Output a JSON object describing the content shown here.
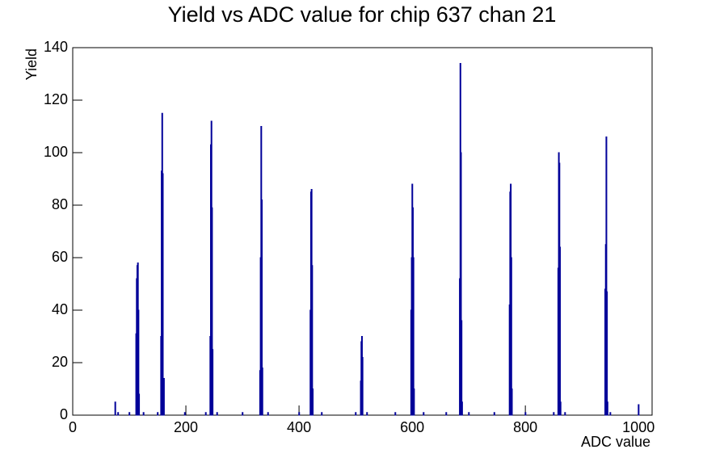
{
  "chart_data": {
    "type": "histogram",
    "title": "Yield vs ADC value for chip 637 chan 21",
    "x_label": "ADC value",
    "y_label": "Yield",
    "color": "#000099",
    "xlim": [
      0,
      1024
    ],
    "ylim": [
      0,
      140
    ],
    "xticks": [
      0,
      200,
      400,
      600,
      800,
      1000
    ],
    "yticks": [
      0,
      20,
      40,
      60,
      80,
      100,
      120,
      140
    ],
    "x": [
      75,
      80,
      100,
      112,
      113,
      114,
      115,
      116,
      117,
      125,
      150,
      156,
      157,
      158,
      159,
      160,
      161,
      198,
      235,
      243,
      244,
      245,
      246,
      247,
      255,
      300,
      331,
      332,
      333,
      334,
      335,
      345,
      400,
      420,
      421,
      422,
      423,
      424,
      440,
      500,
      509,
      510,
      511,
      512,
      520,
      570,
      598,
      599,
      600,
      601,
      602,
      603,
      620,
      660,
      684,
      685,
      686,
      687,
      688,
      700,
      745,
      772,
      773,
      774,
      775,
      776,
      800,
      850,
      858,
      859,
      860,
      861,
      862,
      870,
      941,
      942,
      943,
      944,
      945,
      950,
      1000
    ],
    "values": [
      5,
      1,
      1,
      31,
      52,
      57,
      58,
      40,
      8,
      1,
      1,
      30,
      93,
      115,
      92,
      14,
      14,
      1,
      1,
      30,
      103,
      112,
      79,
      25,
      1,
      1,
      17,
      60,
      110,
      82,
      18,
      1,
      1,
      40,
      85,
      86,
      57,
      10,
      1,
      1,
      13,
      28,
      30,
      22,
      1,
      1,
      40,
      60,
      88,
      79,
      60,
      10,
      1,
      1,
      52,
      134,
      100,
      36,
      5,
      1,
      1,
      42,
      85,
      88,
      60,
      10,
      1,
      1,
      56,
      100,
      96,
      64,
      5,
      1,
      48,
      65,
      106,
      47,
      5,
      1,
      4
    ]
  }
}
